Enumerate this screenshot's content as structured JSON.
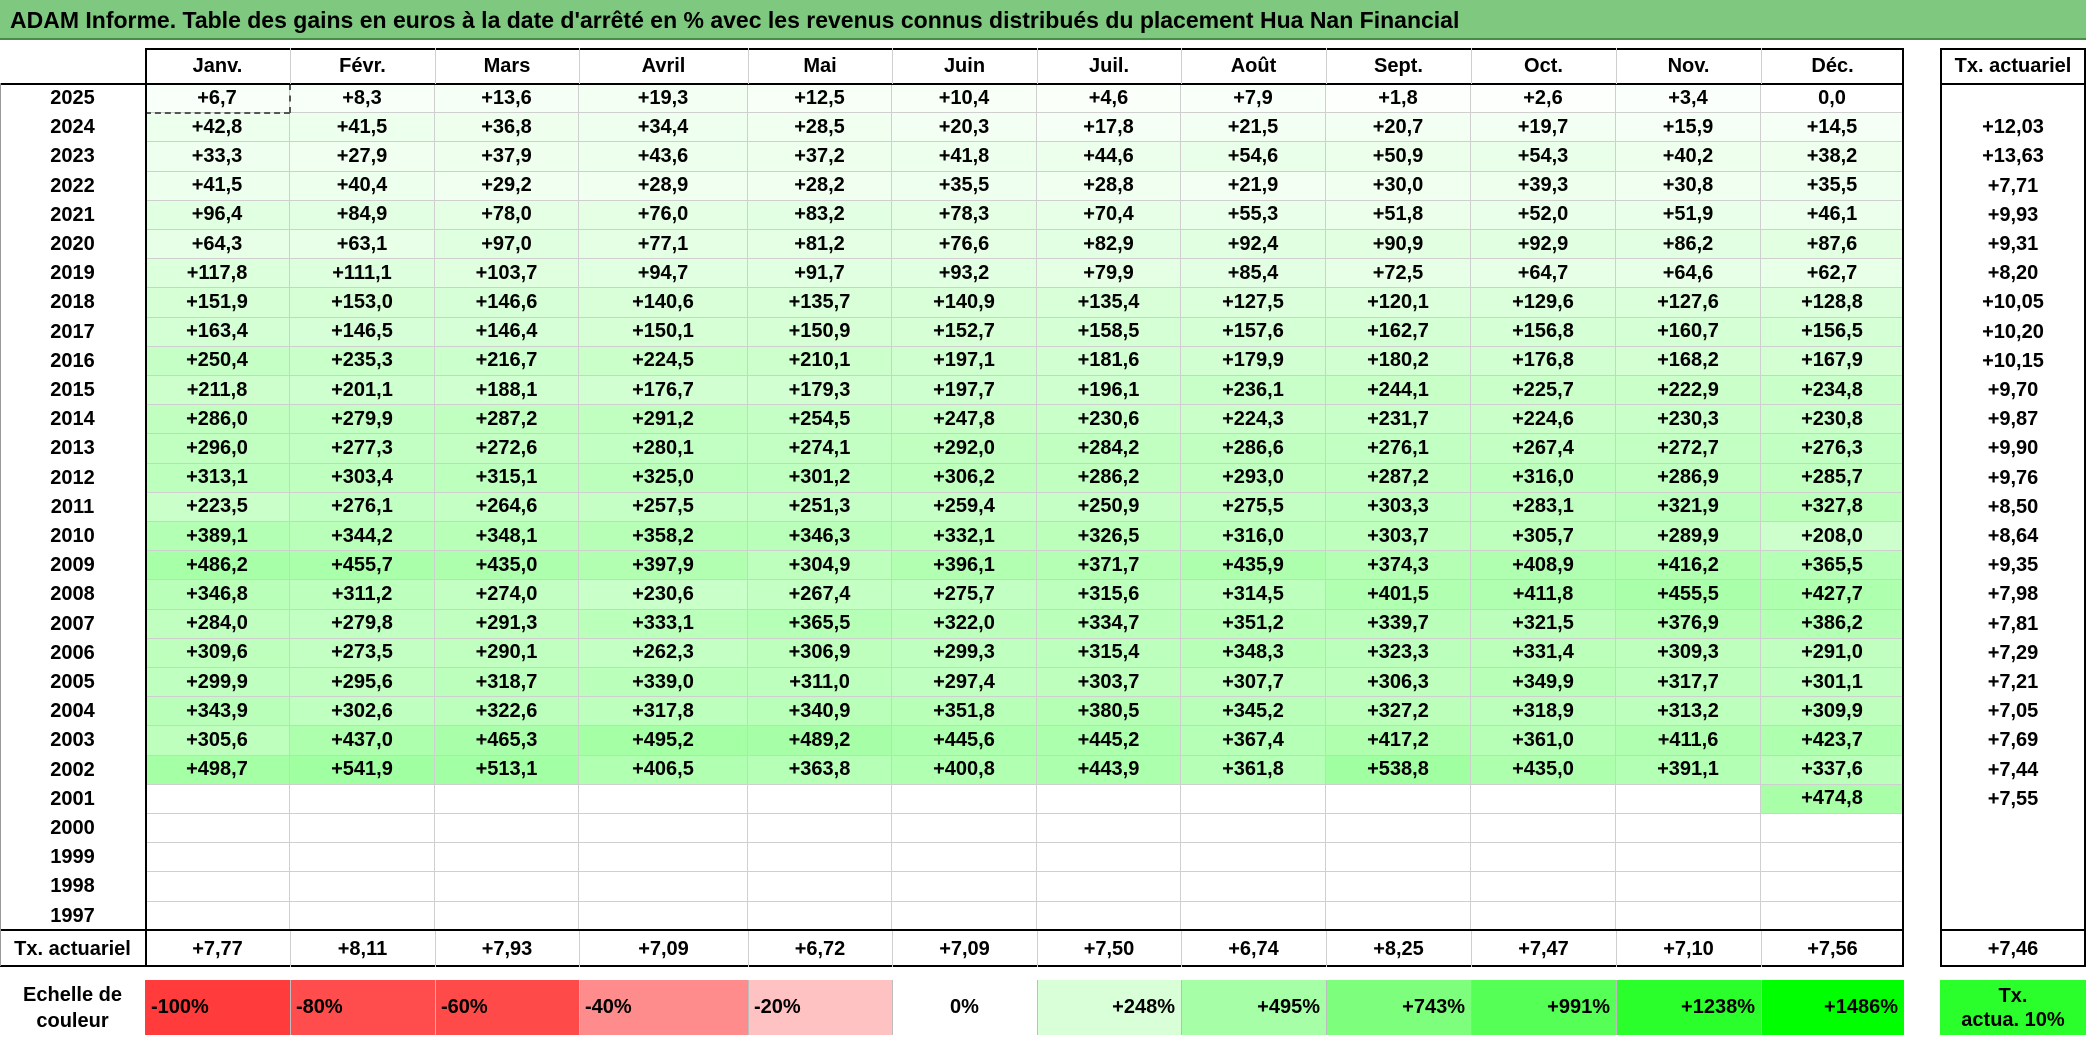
{
  "title": "ADAM Informe. Table des gains en euros à la date d'arrêté en % avec les revenus connus distribués du placement Hua Nan Financial",
  "months": [
    "Janv.",
    "Févr.",
    "Mars",
    "Avril",
    "Mai",
    "Juin",
    "Juil.",
    "Août",
    "Sept.",
    "Oct.",
    "Nov.",
    "Déc."
  ],
  "rate_header": "Tx. actuariel",
  "rows": [
    {
      "year": "2025",
      "values": [
        "+6,7",
        "+8,3",
        "+13,6",
        "+19,3",
        "+12,5",
        "+10,4",
        "+4,6",
        "+7,9",
        "+1,8",
        "+2,6",
        "+3,4",
        "0,0"
      ],
      "rate": ""
    },
    {
      "year": "2024",
      "values": [
        "+42,8",
        "+41,5",
        "+36,8",
        "+34,4",
        "+28,5",
        "+20,3",
        "+17,8",
        "+21,5",
        "+20,7",
        "+19,7",
        "+15,9",
        "+14,5"
      ],
      "rate": "+12,03"
    },
    {
      "year": "2023",
      "values": [
        "+33,3",
        "+27,9",
        "+37,9",
        "+43,6",
        "+37,2",
        "+41,8",
        "+44,6",
        "+54,6",
        "+50,9",
        "+54,3",
        "+40,2",
        "+38,2"
      ],
      "rate": "+13,63"
    },
    {
      "year": "2022",
      "values": [
        "+41,5",
        "+40,4",
        "+29,2",
        "+28,9",
        "+28,2",
        "+35,5",
        "+28,8",
        "+21,9",
        "+30,0",
        "+39,3",
        "+30,8",
        "+35,5"
      ],
      "rate": "+7,71"
    },
    {
      "year": "2021",
      "values": [
        "+96,4",
        "+84,9",
        "+78,0",
        "+76,0",
        "+83,2",
        "+78,3",
        "+70,4",
        "+55,3",
        "+51,8",
        "+52,0",
        "+51,9",
        "+46,1"
      ],
      "rate": "+9,93"
    },
    {
      "year": "2020",
      "values": [
        "+64,3",
        "+63,1",
        "+97,0",
        "+77,1",
        "+81,2",
        "+76,6",
        "+82,9",
        "+92,4",
        "+90,9",
        "+92,9",
        "+86,2",
        "+87,6"
      ],
      "rate": "+9,31"
    },
    {
      "year": "2019",
      "values": [
        "+117,8",
        "+111,1",
        "+103,7",
        "+94,7",
        "+91,7",
        "+93,2",
        "+79,9",
        "+85,4",
        "+72,5",
        "+64,7",
        "+64,6",
        "+62,7"
      ],
      "rate": "+8,20"
    },
    {
      "year": "2018",
      "values": [
        "+151,9",
        "+153,0",
        "+146,6",
        "+140,6",
        "+135,7",
        "+140,9",
        "+135,4",
        "+127,5",
        "+120,1",
        "+129,6",
        "+127,6",
        "+128,8"
      ],
      "rate": "+10,05"
    },
    {
      "year": "2017",
      "values": [
        "+163,4",
        "+146,5",
        "+146,4",
        "+150,1",
        "+150,9",
        "+152,7",
        "+158,5",
        "+157,6",
        "+162,7",
        "+156,8",
        "+160,7",
        "+156,5"
      ],
      "rate": "+10,20"
    },
    {
      "year": "2016",
      "values": [
        "+250,4",
        "+235,3",
        "+216,7",
        "+224,5",
        "+210,1",
        "+197,1",
        "+181,6",
        "+179,9",
        "+180,2",
        "+176,8",
        "+168,2",
        "+167,9"
      ],
      "rate": "+10,15"
    },
    {
      "year": "2015",
      "values": [
        "+211,8",
        "+201,1",
        "+188,1",
        "+176,7",
        "+179,3",
        "+197,7",
        "+196,1",
        "+236,1",
        "+244,1",
        "+225,7",
        "+222,9",
        "+234,8"
      ],
      "rate": "+9,70"
    },
    {
      "year": "2014",
      "values": [
        "+286,0",
        "+279,9",
        "+287,2",
        "+291,2",
        "+254,5",
        "+247,8",
        "+230,6",
        "+224,3",
        "+231,7",
        "+224,6",
        "+230,3",
        "+230,8"
      ],
      "rate": "+9,87"
    },
    {
      "year": "2013",
      "values": [
        "+296,0",
        "+277,3",
        "+272,6",
        "+280,1",
        "+274,1",
        "+292,0",
        "+284,2",
        "+286,6",
        "+276,1",
        "+267,4",
        "+272,7",
        "+276,3"
      ],
      "rate": "+9,90"
    },
    {
      "year": "2012",
      "values": [
        "+313,1",
        "+303,4",
        "+315,1",
        "+325,0",
        "+301,2",
        "+306,2",
        "+286,2",
        "+293,0",
        "+287,2",
        "+316,0",
        "+286,9",
        "+285,7"
      ],
      "rate": "+9,76"
    },
    {
      "year": "2011",
      "values": [
        "+223,5",
        "+276,1",
        "+264,6",
        "+257,5",
        "+251,3",
        "+259,4",
        "+250,9",
        "+275,5",
        "+303,3",
        "+283,1",
        "+321,9",
        "+327,8"
      ],
      "rate": "+8,50"
    },
    {
      "year": "2010",
      "values": [
        "+389,1",
        "+344,2",
        "+348,1",
        "+358,2",
        "+346,3",
        "+332,1",
        "+326,5",
        "+316,0",
        "+303,7",
        "+305,7",
        "+289,9",
        "+208,0"
      ],
      "rate": "+8,64"
    },
    {
      "year": "2009",
      "values": [
        "+486,2",
        "+455,7",
        "+435,0",
        "+397,9",
        "+304,9",
        "+396,1",
        "+371,7",
        "+435,9",
        "+374,3",
        "+408,9",
        "+416,2",
        "+365,5"
      ],
      "rate": "+9,35"
    },
    {
      "year": "2008",
      "values": [
        "+346,8",
        "+311,2",
        "+274,0",
        "+230,6",
        "+267,4",
        "+275,7",
        "+315,6",
        "+314,5",
        "+401,5",
        "+411,8",
        "+455,5",
        "+427,7"
      ],
      "rate": "+7,98"
    },
    {
      "year": "2007",
      "values": [
        "+284,0",
        "+279,8",
        "+291,3",
        "+333,1",
        "+365,5",
        "+322,0",
        "+334,7",
        "+351,2",
        "+339,7",
        "+321,5",
        "+376,9",
        "+386,2"
      ],
      "rate": "+7,81"
    },
    {
      "year": "2006",
      "values": [
        "+309,6",
        "+273,5",
        "+290,1",
        "+262,3",
        "+306,9",
        "+299,3",
        "+315,4",
        "+348,3",
        "+323,3",
        "+331,4",
        "+309,3",
        "+291,0"
      ],
      "rate": "+7,29"
    },
    {
      "year": "2005",
      "values": [
        "+299,9",
        "+295,6",
        "+318,7",
        "+339,0",
        "+311,0",
        "+297,4",
        "+303,7",
        "+307,7",
        "+306,3",
        "+349,9",
        "+317,7",
        "+301,1"
      ],
      "rate": "+7,21"
    },
    {
      "year": "2004",
      "values": [
        "+343,9",
        "+302,6",
        "+322,6",
        "+317,8",
        "+340,9",
        "+351,8",
        "+380,5",
        "+345,2",
        "+327,2",
        "+318,9",
        "+313,2",
        "+309,9"
      ],
      "rate": "+7,05"
    },
    {
      "year": "2003",
      "values": [
        "+305,6",
        "+437,0",
        "+465,3",
        "+495,2",
        "+489,2",
        "+445,6",
        "+445,2",
        "+367,4",
        "+417,2",
        "+361,0",
        "+411,6",
        "+423,7"
      ],
      "rate": "+7,69"
    },
    {
      "year": "2002",
      "values": [
        "+498,7",
        "+541,9",
        "+513,1",
        "+406,5",
        "+363,8",
        "+400,8",
        "+443,9",
        "+361,8",
        "+538,8",
        "+435,0",
        "+391,1",
        "+337,6"
      ],
      "rate": "+7,44"
    },
    {
      "year": "2001",
      "values": [
        "",
        "",
        "",
        "",
        "",
        "",
        "",
        "",
        "",
        "",
        "",
        "+474,8"
      ],
      "rate": "+7,55"
    },
    {
      "year": "2000",
      "values": [
        "",
        "",
        "",
        "",
        "",
        "",
        "",
        "",
        "",
        "",
        "",
        ""
      ],
      "rate": ""
    },
    {
      "year": "1999",
      "values": [
        "",
        "",
        "",
        "",
        "",
        "",
        "",
        "",
        "",
        "",
        "",
        ""
      ],
      "rate": ""
    },
    {
      "year": "1998",
      "values": [
        "",
        "",
        "",
        "",
        "",
        "",
        "",
        "",
        "",
        "",
        "",
        ""
      ],
      "rate": ""
    },
    {
      "year": "1997",
      "values": [
        "",
        "",
        "",
        "",
        "",
        "",
        "",
        "",
        "",
        "",
        "",
        ""
      ],
      "rate": ""
    }
  ],
  "footer": {
    "label": "Tx. actuariel",
    "values": [
      "+7,77",
      "+8,11",
      "+7,93",
      "+7,09",
      "+6,72",
      "+7,09",
      "+7,50",
      "+6,74",
      "+8,25",
      "+7,47",
      "+7,10",
      "+7,56"
    ],
    "rate": "+7,46"
  },
  "scale": {
    "label_line1": "Echelle de",
    "label_line2": "couleur",
    "items": [
      {
        "text": "-100%",
        "color": "#ff3b3b",
        "align": "left"
      },
      {
        "text": "-80%",
        "color": "#ff4d4d",
        "align": "left"
      },
      {
        "text": "-60%",
        "color": "#ff4a4a",
        "align": "left"
      },
      {
        "text": "-40%",
        "color": "#ff8c8c",
        "align": "left"
      },
      {
        "text": "-20%",
        "color": "#ffc2c2",
        "align": "left"
      },
      {
        "text": "0%",
        "color": "#ffffff",
        "align": "center"
      },
      {
        "text": "+248%",
        "color": "#d9ffd9",
        "align": "right"
      },
      {
        "text": "+495%",
        "color": "#a6ffa6",
        "align": "right"
      },
      {
        "text": "+743%",
        "color": "#7dff7d",
        "align": "right"
      },
      {
        "text": "+991%",
        "color": "#55ff55",
        "align": "right"
      },
      {
        "text": "+1238%",
        "color": "#2bff2b",
        "align": "right"
      },
      {
        "text": "+1486%",
        "color": "#00ff00",
        "align": "right"
      }
    ],
    "rate_line1": "Tx.",
    "rate_line2": "actua. 10%",
    "rate_color": "#2bff2b"
  }
}
